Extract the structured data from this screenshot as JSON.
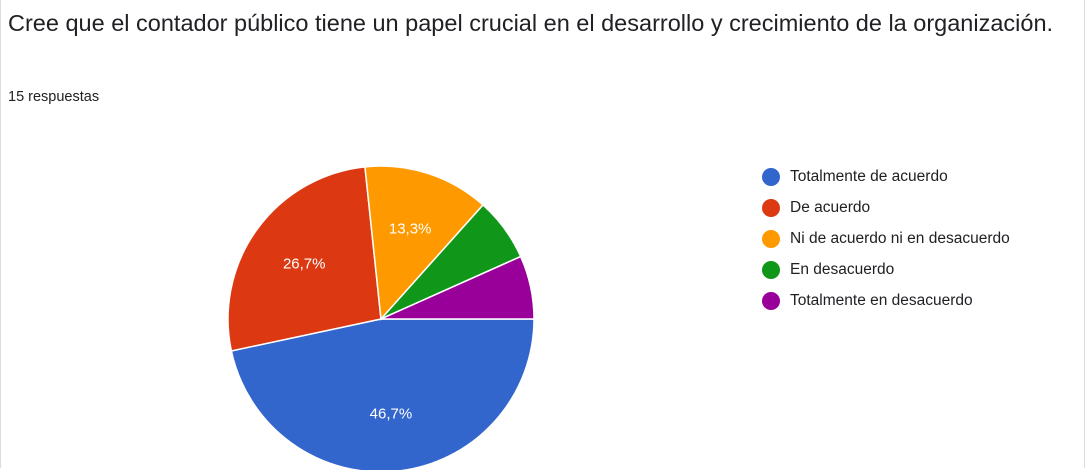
{
  "question": {
    "title": "Cree que el contador público tiene un papel crucial en el desarrollo y crecimiento de la organización.",
    "responses": "15 respuestas"
  },
  "chart_data": {
    "type": "pie",
    "title": "",
    "total_responses": 15,
    "legend_position": "right",
    "slices": [
      {
        "label": "Totalmente de acuerdo",
        "value": 46.7,
        "count": 7,
        "color": "#3366cc",
        "data_label": "46,7%"
      },
      {
        "label": "De acuerdo",
        "value": 26.7,
        "count": 4,
        "color": "#dc3912",
        "data_label": "26,7%"
      },
      {
        "label": "Ni de acuerdo ni en desacuerdo",
        "value": 13.3,
        "count": 2,
        "color": "#ff9900",
        "data_label": "13,3%"
      },
      {
        "label": "En desacuerdo",
        "value": 6.7,
        "count": 1,
        "color": "#109618",
        "data_label": ""
      },
      {
        "label": "Totalmente en desacuerdo",
        "value": 6.7,
        "count": 1,
        "color": "#990099",
        "data_label": ""
      }
    ]
  }
}
